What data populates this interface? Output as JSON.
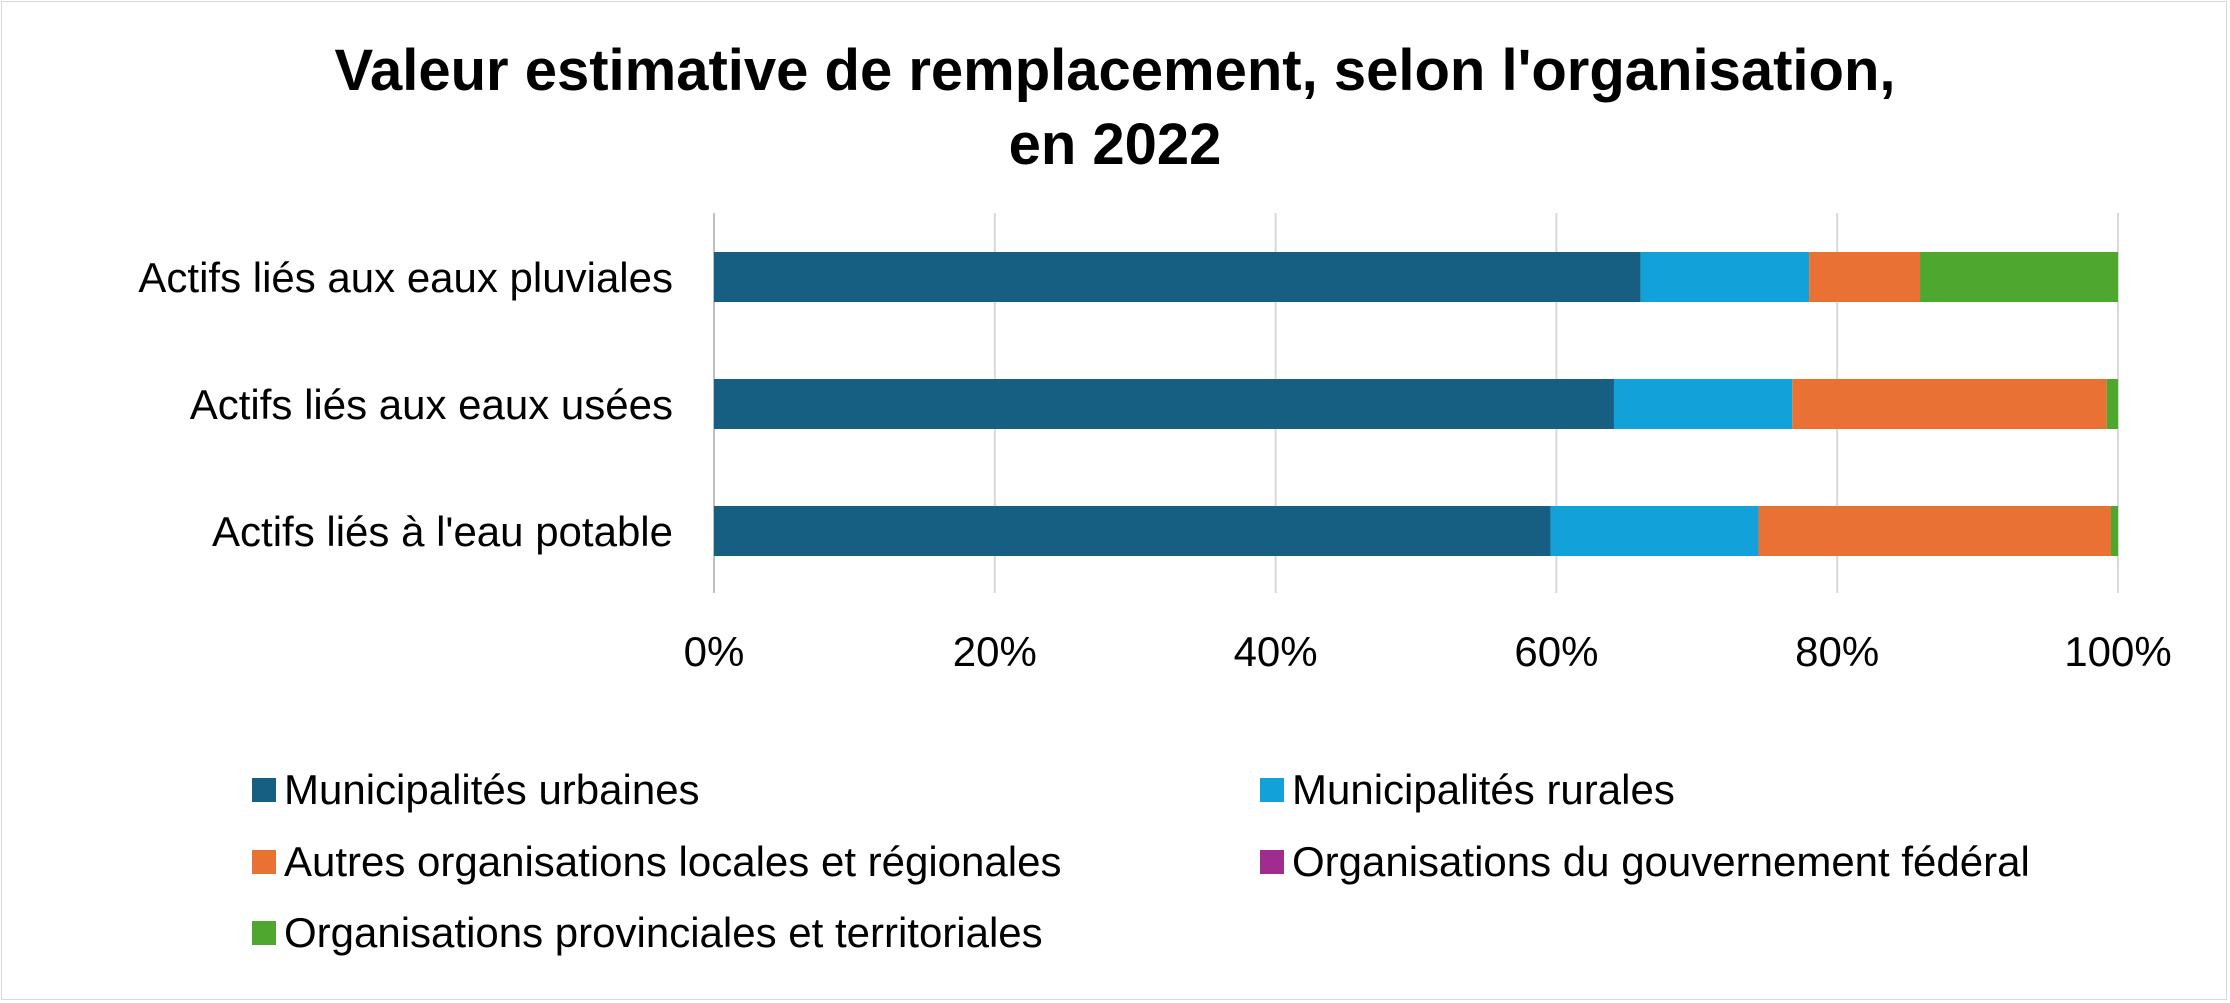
{
  "chart_data": {
    "type": "bar",
    "orientation": "horizontal",
    "stacked": "percent",
    "title": [
      "Valeur estimative de remplacement, selon l'organisation,",
      "en 2022"
    ],
    "categories": [
      "Actifs liés aux eaux pluviales",
      "Actifs liés aux eaux usées",
      "Actifs liés à l'eau potable"
    ],
    "series": [
      {
        "name": "Municipalités urbaines",
        "color": "#175f82",
        "values": [
          66.0,
          64.1,
          59.6
        ]
      },
      {
        "name": "Municipalités rurales",
        "color": "#13a1d9",
        "values": [
          12.0,
          12.7,
          14.8
        ]
      },
      {
        "name": "Autres organisations locales et régionales",
        "color": "#ea7134",
        "values": [
          7.9,
          22.4,
          25.1
        ]
      },
      {
        "name": "Organisations du gouvernement fédéral",
        "color": "#a12c8f",
        "values": [
          0.0,
          0.0,
          0.0
        ]
      },
      {
        "name": "Organisations provinciales et territoriales",
        "color": "#4ea72e",
        "values": [
          14.1,
          0.8,
          0.5
        ]
      }
    ],
    "xticks": [
      "0%",
      "20%",
      "40%",
      "60%",
      "80%",
      "100%"
    ],
    "xlim": [
      0,
      100
    ],
    "grid": true,
    "legend_position": "bottom"
  }
}
